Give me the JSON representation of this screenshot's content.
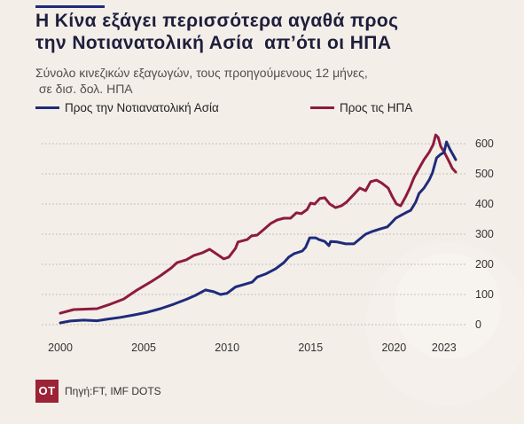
{
  "colors": {
    "background": "#f3eee8",
    "accent": "#1f2b7b",
    "title": "#1e1e3c",
    "logo": "#9b2335"
  },
  "chart_data": {
    "type": "line",
    "title": "Η Κίνα εξάγει περισσότερα αγαθά προς\nτην Νοτιανατολική Ασία  απ’ότι οι ΗΠΑ",
    "subtitle": "Σύνολο κινεζικών εξαγωγών, τους προηγούμενους 12 μήνες,\n σε δισ. δολ. ΗΠΑ",
    "xlim": [
      2000,
      2023.7
    ],
    "ylim": [
      0,
      640
    ],
    "xticks": [
      2000,
      2005,
      2010,
      2015,
      2020,
      2023
    ],
    "yticks": [
      0,
      100,
      200,
      300,
      400,
      500,
      600
    ],
    "y_axis_side": "right",
    "grid": true,
    "grid_style": "dashed",
    "legend": "top-left",
    "series": [
      {
        "name": "Προς την Νοτιανατολική Ασία",
        "color": "#1f2b7b",
        "x": [
          2000.0,
          2000.6,
          2001.4,
          2002.2,
          2002.8,
          2003.6,
          2004.4,
          2005.2,
          2006.0,
          2006.8,
          2007.6,
          2008.1,
          2008.7,
          2009.2,
          2009.6,
          2010.0,
          2010.5,
          2011.0,
          2011.5,
          2011.8,
          2012.3,
          2012.9,
          2013.4,
          2013.7,
          2014.0,
          2014.5,
          2014.7,
          2014.95,
          2015.3,
          2015.5,
          2015.85,
          2016.1,
          2016.2,
          2016.6,
          2017.1,
          2017.6,
          2017.9,
          2018.3,
          2018.7,
          2019.2,
          2019.6,
          2019.8,
          2020.1,
          2020.4,
          2020.7,
          2021.0,
          2021.3,
          2021.5,
          2021.8,
          2022.1,
          2022.3,
          2022.55,
          2022.8,
          2023.0,
          2023.15,
          2023.35,
          2023.55,
          2023.7
        ],
        "values": [
          6,
          12,
          15,
          13,
          18,
          24,
          32,
          41,
          53,
          68,
          85,
          97,
          115,
          109,
          100,
          104,
          125,
          133,
          141,
          158,
          168,
          185,
          206,
          224,
          235,
          244,
          256,
          288,
          288,
          282,
          276,
          262,
          276,
          274,
          268,
          268,
          282,
          300,
          309,
          318,
          324,
          335,
          353,
          362,
          371,
          379,
          406,
          435,
          453,
          479,
          503,
          553,
          565,
          571,
          606,
          582,
          562,
          547
        ]
      },
      {
        "name": "Προς τις ΗΠΑ",
        "color": "#8d1b3d",
        "x": [
          2000.0,
          2000.8,
          2002.2,
          2003.0,
          2003.8,
          2004.6,
          2005.4,
          2006.0,
          2006.65,
          2007.0,
          2007.55,
          2008.0,
          2008.5,
          2008.95,
          2009.35,
          2009.8,
          2010.1,
          2010.5,
          2010.65,
          2011.2,
          2011.45,
          2011.8,
          2012.25,
          2012.6,
          2013.0,
          2013.4,
          2013.8,
          2014.15,
          2014.45,
          2014.8,
          2015.0,
          2015.25,
          2015.55,
          2015.85,
          2016.15,
          2016.5,
          2016.85,
          2017.15,
          2017.55,
          2017.95,
          2018.3,
          2018.6,
          2018.95,
          2019.25,
          2019.65,
          2019.9,
          2020.15,
          2020.4,
          2020.7,
          2020.95,
          2021.2,
          2021.5,
          2021.8,
          2022.1,
          2022.35,
          2022.5,
          2022.65,
          2022.8,
          2023.05,
          2023.3,
          2023.5,
          2023.7
        ],
        "values": [
          38,
          50,
          53,
          68,
          85,
          115,
          141,
          162,
          188,
          206,
          215,
          229,
          238,
          250,
          235,
          218,
          224,
          253,
          274,
          282,
          294,
          297,
          318,
          335,
          347,
          353,
          353,
          371,
          368,
          382,
          403,
          400,
          418,
          421,
          400,
          388,
          394,
          406,
          429,
          453,
          444,
          474,
          479,
          470,
          453,
          424,
          400,
          394,
          424,
          453,
          488,
          518,
          547,
          571,
          597,
          629,
          621,
          591,
          568,
          541,
          518,
          506
        ]
      }
    ]
  },
  "footer": {
    "logo_text": "OT",
    "source": "Πηγή:FT, IMF DOTS"
  }
}
